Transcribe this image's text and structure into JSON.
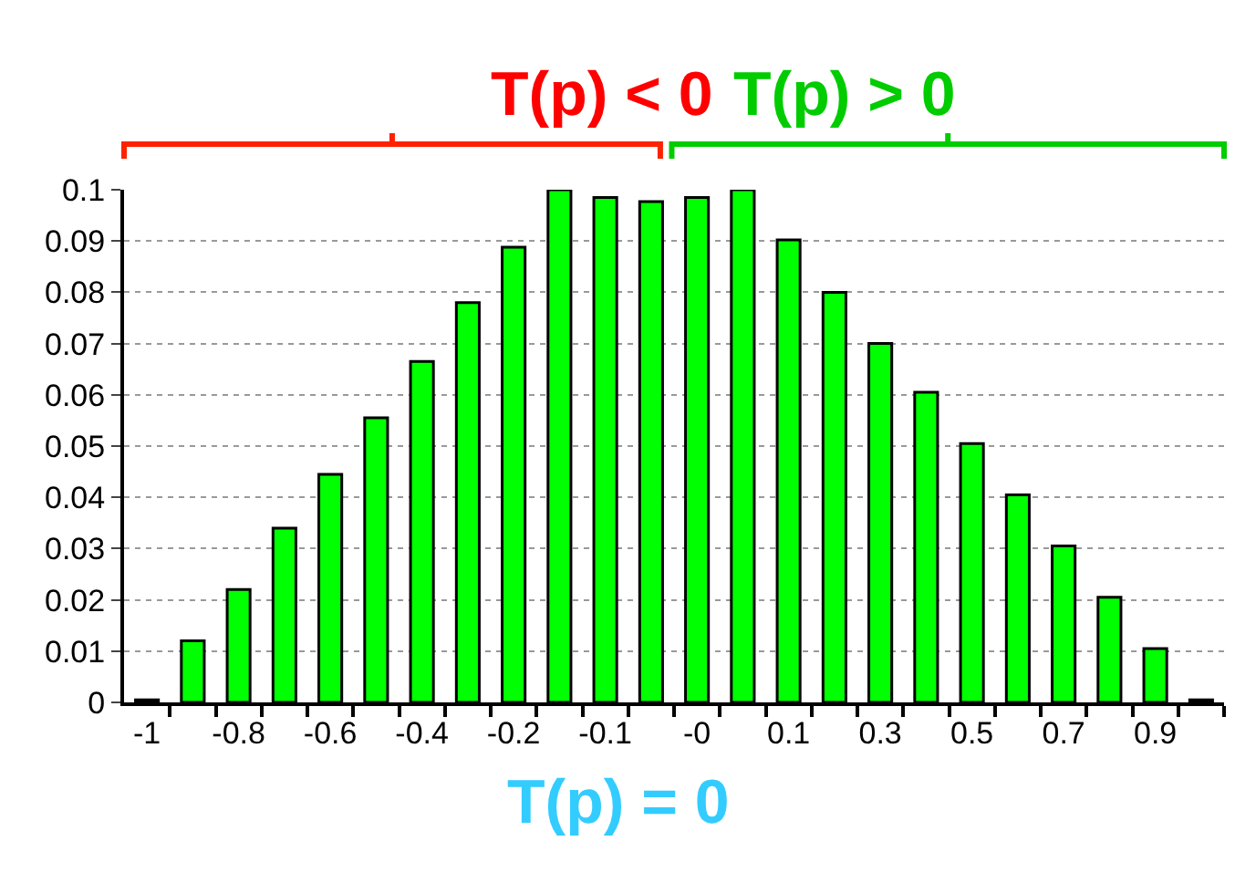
{
  "chart_data": {
    "type": "bar",
    "categories": [
      "-1",
      null,
      "-0.8",
      null,
      "-0.6",
      null,
      "-0.4",
      null,
      "-0.2",
      null,
      "-0.1",
      null,
      "-0",
      null,
      "0.1",
      null,
      "0.3",
      null,
      "0.5",
      null,
      "0.7",
      null,
      "0.9",
      null
    ],
    "values": [
      0.0005,
      0.012,
      0.022,
      0.034,
      0.0445,
      0.0555,
      0.0665,
      0.078,
      0.0888,
      0.1,
      0.0985,
      0.0977,
      0.0985,
      0.1,
      0.0902,
      0.08,
      0.07,
      0.0605,
      0.0505,
      0.0405,
      0.0305,
      0.0205,
      0.0105,
      0.0005
    ],
    "color": "#00ff00",
    "ylim": [
      0,
      0.1
    ],
    "yticks": [
      0,
      0.01,
      0.02,
      0.03,
      0.04,
      0.05,
      0.06,
      0.07,
      0.08,
      0.09,
      0.1
    ],
    "grid": "y",
    "annotations": [
      "T(p) < 0",
      "T(p) > 0",
      "T(p) = 0"
    ]
  }
}
